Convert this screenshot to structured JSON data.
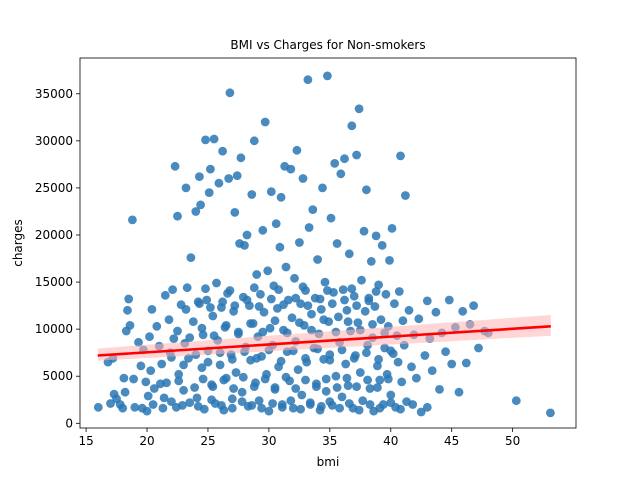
{
  "chart_data": {
    "type": "scatter",
    "title": "BMI vs Charges for Non-smokers",
    "xlabel": "bmi",
    "ylabel": "charges",
    "xlim": [
      14.5,
      55.2
    ],
    "ylim": [
      -500,
      38800
    ],
    "xticks": [
      15,
      20,
      25,
      30,
      35,
      40,
      45,
      50
    ],
    "yticks": [
      0,
      5000,
      10000,
      15000,
      20000,
      25000,
      30000,
      35000
    ],
    "grid": false,
    "legend": "none",
    "colors": {
      "points": "#2a77b4",
      "regression_line": "#ff0000",
      "confidence_band": "#ffb3b3"
    },
    "regression": {
      "x": [
        15.96,
        53.13
      ],
      "y": [
        7200,
        10300
      ],
      "ci_lower": [
        6650,
        9300
      ],
      "ci_upper": [
        7950,
        11500
      ]
    },
    "points": [
      [
        16.0,
        1700
      ],
      [
        16.8,
        6500
      ],
      [
        17.2,
        6900
      ],
      [
        17.3,
        3100
      ],
      [
        17.5,
        2600
      ],
      [
        17.8,
        2000
      ],
      [
        18.0,
        1600
      ],
      [
        18.1,
        4800
      ],
      [
        18.3,
        9800
      ],
      [
        18.4,
        12000
      ],
      [
        18.5,
        13200
      ],
      [
        18.6,
        10400
      ],
      [
        18.8,
        21600
      ],
      [
        18.9,
        4700
      ],
      [
        19.0,
        1700
      ],
      [
        19.3,
        8600
      ],
      [
        19.5,
        6100
      ],
      [
        19.7,
        7800
      ],
      [
        19.9,
        4400
      ],
      [
        20.0,
        1300
      ],
      [
        20.1,
        2900
      ],
      [
        20.2,
        9200
      ],
      [
        20.3,
        5600
      ],
      [
        20.4,
        12100
      ],
      [
        20.6,
        3700
      ],
      [
        20.8,
        10300
      ],
      [
        21.0,
        8200
      ],
      [
        21.2,
        6300
      ],
      [
        21.3,
        1600
      ],
      [
        21.5,
        13600
      ],
      [
        21.6,
        4300
      ],
      [
        21.8,
        11000
      ],
      [
        21.9,
        7500
      ],
      [
        22.0,
        2300
      ],
      [
        22.1,
        14200
      ],
      [
        22.2,
        9000
      ],
      [
        22.3,
        27300
      ],
      [
        22.5,
        22000
      ],
      [
        22.6,
        5200
      ],
      [
        22.8,
        12600
      ],
      [
        22.9,
        1900
      ],
      [
        23.0,
        3500
      ],
      [
        23.1,
        8500
      ],
      [
        23.2,
        25000
      ],
      [
        23.3,
        14400
      ],
      [
        23.4,
        6900
      ],
      [
        23.6,
        17600
      ],
      [
        23.8,
        10800
      ],
      [
        24.0,
        22500
      ],
      [
        24.1,
        2700
      ],
      [
        24.2,
        12900
      ],
      [
        24.3,
        26200
      ],
      [
        24.4,
        23200
      ],
      [
        24.5,
        5900
      ],
      [
        24.6,
        9400
      ],
      [
        24.7,
        1500
      ],
      [
        24.8,
        30100
      ],
      [
        24.9,
        13100
      ],
      [
        25.0,
        7700
      ],
      [
        25.1,
        24500
      ],
      [
        25.2,
        27000
      ],
      [
        25.3,
        4100
      ],
      [
        25.4,
        11400
      ],
      [
        25.5,
        30200
      ],
      [
        25.6,
        2100
      ],
      [
        25.7,
        14900
      ],
      [
        25.8,
        8800
      ],
      [
        25.9,
        25500
      ],
      [
        26.0,
        6200
      ],
      [
        26.1,
        12300
      ],
      [
        26.2,
        28900
      ],
      [
        26.3,
        1400
      ],
      [
        26.4,
        10200
      ],
      [
        26.5,
        4800
      ],
      [
        26.6,
        13800
      ],
      [
        26.7,
        26000
      ],
      [
        26.8,
        35100
      ],
      [
        26.9,
        7300
      ],
      [
        27.0,
        2600
      ],
      [
        27.1,
        11900
      ],
      [
        27.2,
        22400
      ],
      [
        27.3,
        5400
      ],
      [
        27.4,
        26300
      ],
      [
        27.5,
        9700
      ],
      [
        27.6,
        19100
      ],
      [
        27.7,
        28200
      ],
      [
        27.8,
        3300
      ],
      [
        27.9,
        13400
      ],
      [
        28.0,
        18900
      ],
      [
        28.1,
        8100
      ],
      [
        28.2,
        20000
      ],
      [
        28.3,
        1800
      ],
      [
        28.4,
        12500
      ],
      [
        28.5,
        6700
      ],
      [
        28.6,
        24300
      ],
      [
        28.7,
        10600
      ],
      [
        28.8,
        30000
      ],
      [
        28.9,
        4300
      ],
      [
        29.0,
        15800
      ],
      [
        29.1,
        9200
      ],
      [
        29.2,
        2400
      ],
      [
        29.3,
        13700
      ],
      [
        29.4,
        7100
      ],
      [
        29.5,
        20500
      ],
      [
        29.6,
        11800
      ],
      [
        29.7,
        32000
      ],
      [
        29.8,
        5200
      ],
      [
        29.9,
        16200
      ],
      [
        30.0,
        1300
      ],
      [
        30.1,
        10100
      ],
      [
        30.2,
        24600
      ],
      [
        30.3,
        8300
      ],
      [
        30.4,
        14600
      ],
      [
        30.5,
        3600
      ],
      [
        30.6,
        21200
      ],
      [
        30.7,
        12200
      ],
      [
        30.8,
        6000
      ],
      [
        30.9,
        18700
      ],
      [
        31.0,
        24000
      ],
      [
        31.1,
        2000
      ],
      [
        31.2,
        9900
      ],
      [
        31.3,
        27300
      ],
      [
        31.4,
        16600
      ],
      [
        31.5,
        7600
      ],
      [
        31.6,
        13100
      ],
      [
        31.7,
        4500
      ],
      [
        31.8,
        27000
      ],
      [
        31.9,
        11200
      ],
      [
        32.0,
        1600
      ],
      [
        32.1,
        15400
      ],
      [
        32.2,
        8700
      ],
      [
        32.3,
        29000
      ],
      [
        32.4,
        5700
      ],
      [
        32.5,
        19200
      ],
      [
        32.6,
        12700
      ],
      [
        32.7,
        3000
      ],
      [
        32.8,
        26000
      ],
      [
        32.9,
        10400
      ],
      [
        33.0,
        14100
      ],
      [
        33.1,
        6500
      ],
      [
        33.2,
        36500
      ],
      [
        33.3,
        20800
      ],
      [
        33.4,
        2200
      ],
      [
        33.5,
        11600
      ],
      [
        33.6,
        22700
      ],
      [
        33.7,
        8000
      ],
      [
        33.8,
        13300
      ],
      [
        33.9,
        4200
      ],
      [
        34.0,
        17400
      ],
      [
        34.1,
        9500
      ],
      [
        34.2,
        1400
      ],
      [
        34.3,
        12100
      ],
      [
        34.4,
        25000
      ],
      [
        34.5,
        6800
      ],
      [
        34.6,
        15000
      ],
      [
        34.7,
        3400
      ],
      [
        34.8,
        36900
      ],
      [
        34.9,
        10800
      ],
      [
        35.0,
        7300
      ],
      [
        35.1,
        21800
      ],
      [
        35.2,
        1900
      ],
      [
        35.3,
        13900
      ],
      [
        35.4,
        27600
      ],
      [
        35.5,
        5000
      ],
      [
        35.6,
        19100
      ],
      [
        35.7,
        11300
      ],
      [
        35.8,
        8600
      ],
      [
        35.9,
        26500
      ],
      [
        36.0,
        2800
      ],
      [
        36.1,
        14200
      ],
      [
        36.2,
        28100
      ],
      [
        36.3,
        6300
      ],
      [
        36.4,
        12000
      ],
      [
        36.5,
        4000
      ],
      [
        36.6,
        18000
      ],
      [
        36.7,
        9800
      ],
      [
        36.8,
        31600
      ],
      [
        36.9,
        1600
      ],
      [
        37.0,
        13500
      ],
      [
        37.1,
        7200
      ],
      [
        37.2,
        28500
      ],
      [
        37.3,
        10700
      ],
      [
        37.4,
        33400
      ],
      [
        37.5,
        5400
      ],
      [
        37.6,
        15200
      ],
      [
        37.7,
        2400
      ],
      [
        37.8,
        20400
      ],
      [
        37.9,
        11900
      ],
      [
        38.0,
        24800
      ],
      [
        38.1,
        8300
      ],
      [
        38.2,
        13300
      ],
      [
        38.3,
        3700
      ],
      [
        38.4,
        17200
      ],
      [
        38.5,
        9100
      ],
      [
        38.6,
        1300
      ],
      [
        38.7,
        12400
      ],
      [
        38.8,
        19900
      ],
      [
        38.9,
        6100
      ],
      [
        39.0,
        14700
      ],
      [
        39.1,
        4600
      ],
      [
        39.2,
        11000
      ],
      [
        39.3,
        18900
      ],
      [
        39.4,
        2000
      ],
      [
        39.5,
        8000
      ],
      [
        39.6,
        13700
      ],
      [
        39.7,
        5200
      ],
      [
        39.8,
        10300
      ],
      [
        39.9,
        17300
      ],
      [
        40.0,
        3000
      ],
      [
        40.1,
        20700
      ],
      [
        40.2,
        7400
      ],
      [
        40.3,
        12700
      ],
      [
        40.4,
        1700
      ],
      [
        40.5,
        9300
      ],
      [
        40.6,
        6500
      ],
      [
        40.7,
        14000
      ],
      [
        40.8,
        28400
      ],
      [
        40.9,
        4400
      ],
      [
        41.0,
        10900
      ],
      [
        41.1,
        8300
      ],
      [
        41.2,
        24200
      ],
      [
        41.3,
        2300
      ],
      [
        41.5,
        12000
      ],
      [
        41.7,
        6000
      ],
      [
        41.9,
        9400
      ],
      [
        42.1,
        4800
      ],
      [
        42.3,
        11100
      ],
      [
        42.5,
        1200
      ],
      [
        42.8,
        7200
      ],
      [
        43.0,
        13000
      ],
      [
        43.2,
        9000
      ],
      [
        43.4,
        5600
      ],
      [
        43.7,
        11800
      ],
      [
        44.0,
        3600
      ],
      [
        44.2,
        9600
      ],
      [
        44.5,
        7600
      ],
      [
        44.8,
        13100
      ],
      [
        45.0,
        6300
      ],
      [
        45.3,
        10200
      ],
      [
        45.6,
        3300
      ],
      [
        45.9,
        11900
      ],
      [
        46.2,
        6400
      ],
      [
        46.5,
        10500
      ],
      [
        46.8,
        12500
      ],
      [
        47.2,
        8000
      ],
      [
        47.7,
        9800
      ],
      [
        48.0,
        9600
      ],
      [
        50.3,
        2400
      ],
      [
        53.1,
        1100
      ],
      [
        17.0,
        2100
      ],
      [
        18.2,
        3300
      ],
      [
        19.6,
        1600
      ],
      [
        20.5,
        2000
      ],
      [
        21.4,
        2700
      ],
      [
        22.4,
        1700
      ],
      [
        23.5,
        2200
      ],
      [
        24.2,
        1800
      ],
      [
        25.3,
        2500
      ],
      [
        26.1,
        1900
      ],
      [
        27.0,
        1600
      ],
      [
        27.8,
        2300
      ],
      [
        28.6,
        1900
      ],
      [
        29.4,
        1600
      ],
      [
        30.3,
        2100
      ],
      [
        31.1,
        1700
      ],
      [
        31.8,
        2400
      ],
      [
        32.6,
        1500
      ],
      [
        33.4,
        2000
      ],
      [
        34.3,
        1800
      ],
      [
        35.0,
        2300
      ],
      [
        35.8,
        1600
      ],
      [
        36.6,
        2100
      ],
      [
        37.4,
        1400
      ],
      [
        38.3,
        2000
      ],
      [
        39.1,
        1600
      ],
      [
        40.0,
        2200
      ],
      [
        40.8,
        1500
      ],
      [
        41.8,
        2000
      ],
      [
        43.0,
        1700
      ],
      [
        21.1,
        4200
      ],
      [
        22.6,
        4500
      ],
      [
        23.9,
        3800
      ],
      [
        24.6,
        4700
      ],
      [
        25.4,
        3900
      ],
      [
        26.3,
        4600
      ],
      [
        27.1,
        3700
      ],
      [
        27.9,
        4900
      ],
      [
        28.8,
        3900
      ],
      [
        29.7,
        4700
      ],
      [
        30.5,
        3800
      ],
      [
        31.4,
        4900
      ],
      [
        32.2,
        3700
      ],
      [
        33.0,
        4600
      ],
      [
        33.9,
        3900
      ],
      [
        34.7,
        4700
      ],
      [
        35.6,
        3800
      ],
      [
        36.4,
        4800
      ],
      [
        37.2,
        3900
      ],
      [
        38.1,
        4600
      ],
      [
        38.9,
        3800
      ],
      [
        39.8,
        4700
      ],
      [
        22.0,
        7000
      ],
      [
        23.0,
        6200
      ],
      [
        24.0,
        7300
      ],
      [
        25.0,
        6500
      ],
      [
        26.0,
        7500
      ],
      [
        27.0,
        6800
      ],
      [
        28.0,
        7600
      ],
      [
        29.0,
        6900
      ],
      [
        30.0,
        7800
      ],
      [
        31.0,
        6600
      ],
      [
        32.0,
        7700
      ],
      [
        33.0,
        6900
      ],
      [
        34.0,
        7900
      ],
      [
        35.0,
        6700
      ],
      [
        36.0,
        7800
      ],
      [
        37.0,
        6900
      ],
      [
        38.0,
        7500
      ],
      [
        39.0,
        6800
      ],
      [
        40.0,
        7700
      ],
      [
        22.5,
        9800
      ],
      [
        23.5,
        9100
      ],
      [
        24.5,
        10100
      ],
      [
        25.5,
        9300
      ],
      [
        26.5,
        10400
      ],
      [
        27.5,
        9500
      ],
      [
        28.5,
        10600
      ],
      [
        29.5,
        9700
      ],
      [
        30.5,
        10900
      ],
      [
        31.5,
        9600
      ],
      [
        32.5,
        10700
      ],
      [
        33.5,
        9900
      ],
      [
        34.5,
        11000
      ],
      [
        35.5,
        9700
      ],
      [
        36.5,
        10800
      ],
      [
        37.5,
        9900
      ],
      [
        38.5,
        10500
      ],
      [
        39.5,
        9600
      ],
      [
        23.2,
        12100
      ],
      [
        24.3,
        12700
      ],
      [
        25.2,
        12300
      ],
      [
        26.2,
        12900
      ],
      [
        27.2,
        12500
      ],
      [
        28.2,
        13100
      ],
      [
        29.2,
        12400
      ],
      [
        30.2,
        13200
      ],
      [
        31.2,
        12600
      ],
      [
        32.2,
        13300
      ],
      [
        33.2,
        12500
      ],
      [
        34.2,
        13200
      ],
      [
        35.2,
        12700
      ],
      [
        36.2,
        13100
      ],
      [
        37.2,
        12500
      ],
      [
        38.2,
        13000
      ],
      [
        24.8,
        14300
      ],
      [
        26.8,
        14100
      ],
      [
        28.8,
        14400
      ],
      [
        30.8,
        14200
      ],
      [
        32.8,
        14500
      ],
      [
        34.8,
        14100
      ],
      [
        36.8,
        14300
      ],
      [
        38.8,
        14000
      ]
    ]
  }
}
